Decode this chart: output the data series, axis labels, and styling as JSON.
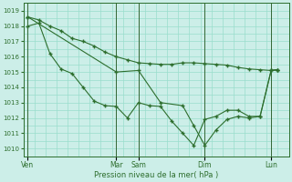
{
  "bg_color": "#cceee8",
  "grid_color": "#99ddcc",
  "line_color": "#2d6e2d",
  "xlabel": "Pression niveau de la mer( hPa )",
  "ylim": [
    1009.5,
    1019.5
  ],
  "yticks": [
    1010,
    1011,
    1012,
    1013,
    1014,
    1015,
    1016,
    1017,
    1018,
    1019
  ],
  "xtick_labels": [
    "Ven",
    "Mar",
    "Sam",
    "Dim",
    "Lun"
  ],
  "xtick_positions": [
    0.0,
    4.0,
    5.0,
    8.0,
    11.0
  ],
  "xmin": -0.2,
  "xmax": 11.8,
  "vline_color": "#336633",
  "line1_x": [
    0.0,
    4.0,
    5.0,
    6.0,
    7.0,
    7.5,
    8.0,
    8.5,
    9.0,
    9.5,
    10.0,
    10.5,
    11.0,
    11.3
  ],
  "line1_y": [
    1018.6,
    1015.0,
    1015.1,
    1013.0,
    1012.8,
    1011.5,
    1010.2,
    1011.2,
    1011.9,
    1012.1,
    1012.0,
    1012.1,
    1015.1,
    1015.15
  ],
  "line2_x": [
    0.0,
    0.5,
    1.0,
    1.5,
    2.0,
    2.5,
    3.0,
    3.5,
    4.0,
    4.5,
    5.0,
    5.5,
    6.0,
    6.5,
    7.0,
    7.5,
    8.0,
    8.5,
    9.0,
    9.5,
    10.0,
    10.5,
    11.0,
    11.3
  ],
  "line2_y": [
    1018.0,
    1018.2,
    1016.2,
    1015.2,
    1014.9,
    1014.0,
    1013.1,
    1012.8,
    1012.75,
    1012.0,
    1013.0,
    1012.8,
    1012.75,
    1011.8,
    1011.0,
    1010.2,
    1011.9,
    1012.1,
    1012.5,
    1012.5,
    1012.1,
    1012.1,
    1015.1,
    1015.15
  ],
  "line3_x": [
    0.0,
    0.5,
    1.0,
    1.5,
    2.0,
    2.5,
    3.0,
    3.5,
    4.0,
    4.5,
    5.0,
    5.5,
    6.0,
    6.5,
    7.0,
    7.5,
    8.0,
    8.5,
    9.0,
    9.5,
    10.0,
    10.5,
    11.0,
    11.3
  ],
  "line3_y": [
    1018.6,
    1018.4,
    1018.0,
    1017.7,
    1017.2,
    1017.0,
    1016.7,
    1016.3,
    1016.0,
    1015.8,
    1015.6,
    1015.55,
    1015.5,
    1015.5,
    1015.6,
    1015.6,
    1015.55,
    1015.5,
    1015.45,
    1015.3,
    1015.2,
    1015.15,
    1015.1,
    1015.15
  ]
}
